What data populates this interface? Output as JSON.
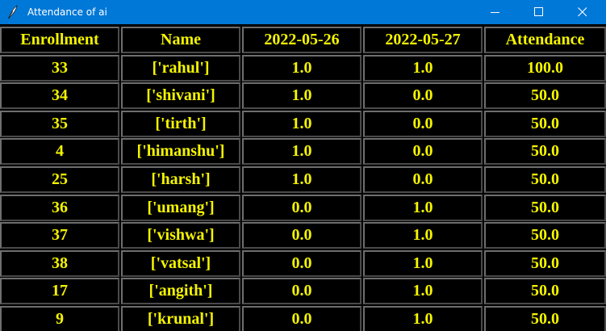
{
  "window": {
    "title": "Attendance of ai",
    "icon": "feather-icon",
    "controls": [
      "minimize-icon",
      "maximize-icon",
      "close-icon"
    ]
  },
  "colors": {
    "titlebar": "#0078d7",
    "cell_background": "#000000",
    "cell_text": "#f4f400",
    "cell_border": "#6e6e6e"
  },
  "table": {
    "headers": [
      "Enrollment",
      "Name",
      "2022-05-26",
      "2022-05-27",
      "Attendance"
    ],
    "rows": [
      [
        "33",
        "['rahul']",
        "1.0",
        "1.0",
        "100.0"
      ],
      [
        "34",
        "['shivani']",
        "1.0",
        "0.0",
        "50.0"
      ],
      [
        "35",
        "['tirth']",
        "1.0",
        "0.0",
        "50.0"
      ],
      [
        "4",
        "['himanshu']",
        "1.0",
        "0.0",
        "50.0"
      ],
      [
        "25",
        "['harsh']",
        "1.0",
        "0.0",
        "50.0"
      ],
      [
        "36",
        "['umang']",
        "0.0",
        "1.0",
        "50.0"
      ],
      [
        "37",
        "['vishwa']",
        "0.0",
        "1.0",
        "50.0"
      ],
      [
        "38",
        "['vatsal']",
        "0.0",
        "1.0",
        "50.0"
      ],
      [
        "17",
        "['angith']",
        "0.0",
        "1.0",
        "50.0"
      ],
      [
        "9",
        "['krunal']",
        "0.0",
        "1.0",
        "50.0"
      ]
    ]
  }
}
